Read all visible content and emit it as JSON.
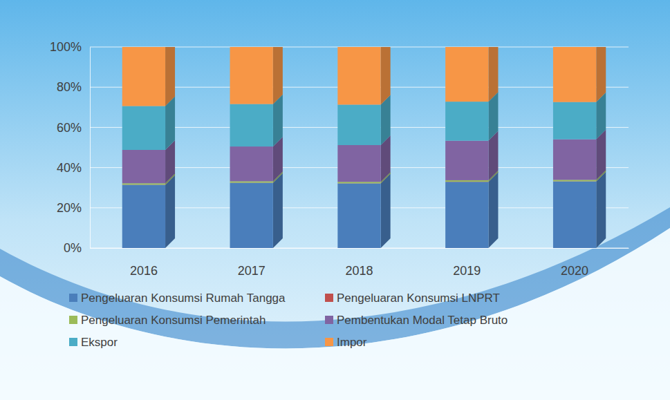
{
  "chart_data": {
    "type": "bar",
    "stacked": true,
    "grid": true,
    "legend": "bottom",
    "categories": [
      "2016",
      "2017",
      "2018",
      "2019",
      "2020"
    ],
    "ylim": [
      0,
      100
    ],
    "yticks": [
      {
        "value": 0,
        "label": "0%"
      },
      {
        "value": 20,
        "label": "20%"
      },
      {
        "value": 40,
        "label": "40%"
      },
      {
        "value": 60,
        "label": "60%"
      },
      {
        "value": 80,
        "label": "80%"
      },
      {
        "value": 100,
        "label": "100%"
      }
    ],
    "series": [
      {
        "name": "Pengeluaran Konsumsi Rumah Tangga",
        "color": "#4a7ebb",
        "values": [
          31.4,
          32.4,
          32.1,
          32.9,
          33.1
        ]
      },
      {
        "name": "Pengeluaran Konsumsi LNPRT",
        "color": "#c0504d",
        "values": [
          0.1,
          0.1,
          0.1,
          0.1,
          0.1
        ]
      },
      {
        "name": "Pengeluaran Konsumsi Pemerintah",
        "color": "#9bbb59",
        "values": [
          0.7,
          0.7,
          0.7,
          0.7,
          0.7
        ]
      },
      {
        "name": "Pembentukan Modal Tetap Bruto",
        "color": "#8064a2",
        "values": [
          16.6,
          17.3,
          18.3,
          19.7,
          20.2
        ]
      },
      {
        "name": "Ekspor",
        "color": "#4bacc6",
        "values": [
          21.8,
          21.1,
          20.1,
          19.4,
          18.5
        ]
      },
      {
        "name": "Impor",
        "color": "#f79646",
        "values": [
          29.4,
          28.4,
          28.7,
          27.2,
          27.4
        ]
      }
    ]
  }
}
